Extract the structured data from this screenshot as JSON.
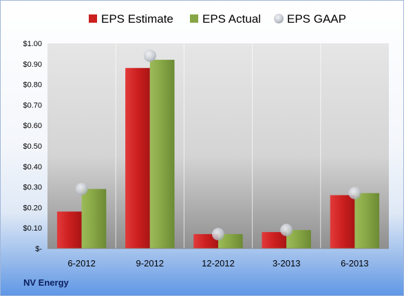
{
  "company_label": "NV Energy",
  "chart_data": {
    "type": "bar",
    "title": "",
    "xlabel": "",
    "ylabel": "",
    "categories": [
      "6-2012",
      "9-2012",
      "12-2012",
      "3-2013",
      "6-2013"
    ],
    "series": [
      {
        "name": "EPS Estimate",
        "kind": "bar",
        "color": "#cc1f1f",
        "values": [
          0.18,
          0.88,
          0.07,
          0.08,
          0.26
        ]
      },
      {
        "name": "EPS Actual",
        "kind": "bar",
        "color": "#86a544",
        "values": [
          0.29,
          0.92,
          0.07,
          0.09,
          0.27
        ]
      },
      {
        "name": "EPS GAAP",
        "kind": "marker",
        "color": "#c8ccd4",
        "values": [
          0.29,
          0.94,
          0.07,
          0.09,
          0.27
        ]
      }
    ],
    "ylim": [
      0,
      1.0
    ],
    "yticks": [
      0,
      0.1,
      0.2,
      0.3,
      0.4,
      0.5,
      0.6,
      0.7,
      0.8,
      0.9,
      1.0
    ],
    "ytick_labels": [
      "$-",
      "$0.10",
      "$0.20",
      "$0.30",
      "$0.40",
      "$0.50",
      "$0.60",
      "$0.70",
      "$0.80",
      "$0.90",
      "$1.00"
    ],
    "grid": "vertical",
    "legend_position": "top"
  }
}
